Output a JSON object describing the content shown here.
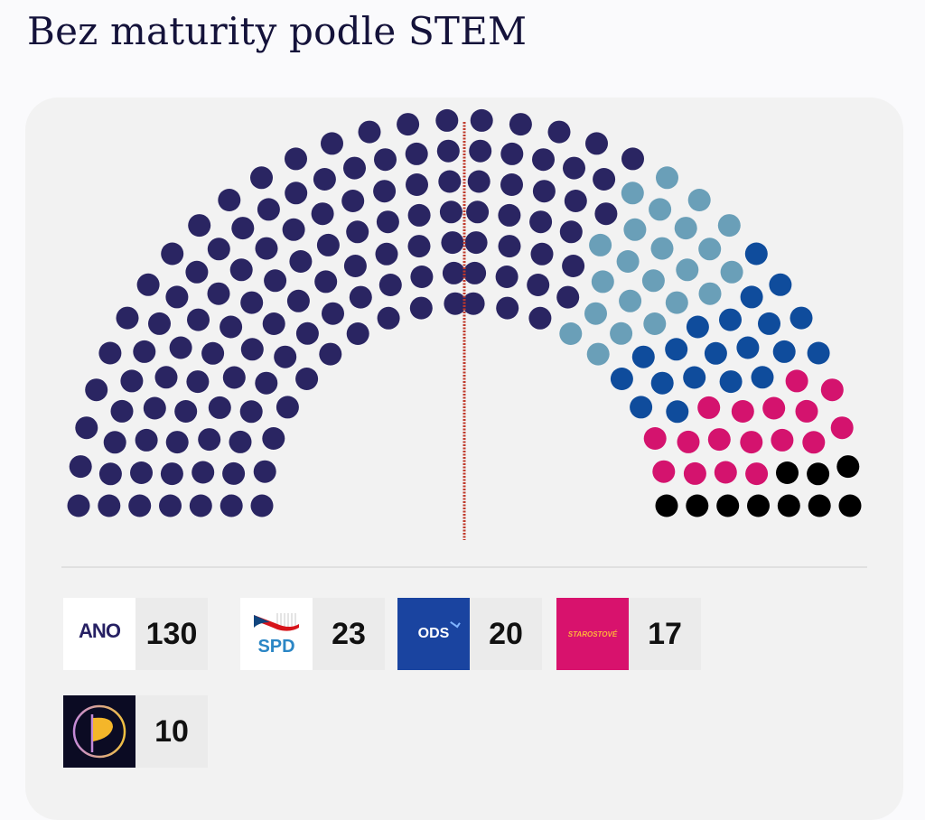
{
  "page": {
    "title": "Bez maturity podle STEM"
  },
  "legend": [
    {
      "party": "ANO",
      "logo_text": "ANO",
      "seats": "130",
      "color": "#2a2562"
    },
    {
      "party": "SPD",
      "logo_text": "SPD",
      "seats": "23",
      "color": "#6a9fb8"
    },
    {
      "party": "ODS",
      "logo_text": "ODS",
      "seats": "20",
      "color": "#0f4c9c"
    },
    {
      "party": "STAROSTOVÉ",
      "logo_text": "STAROSTOVÉ",
      "seats": "17",
      "color": "#d4136e"
    },
    {
      "party": "Piráti",
      "logo_text": "",
      "seats": "10",
      "color": "#000000"
    }
  ],
  "chart_data": {
    "type": "parliament",
    "title": "Bez maturity podle STEM",
    "total_seats": 200,
    "majority_line": 100,
    "categories": [
      "ANO",
      "SPD",
      "ODS",
      "STAROSTOVÉ",
      "Piráti"
    ],
    "values": [
      130,
      23,
      20,
      17,
      10
    ],
    "colors": [
      "#2a2562",
      "#6a9fb8",
      "#0f4c9c",
      "#d4136e",
      "#000000"
    ],
    "divider_color": "#c0392b",
    "legend_position": "bottom"
  }
}
